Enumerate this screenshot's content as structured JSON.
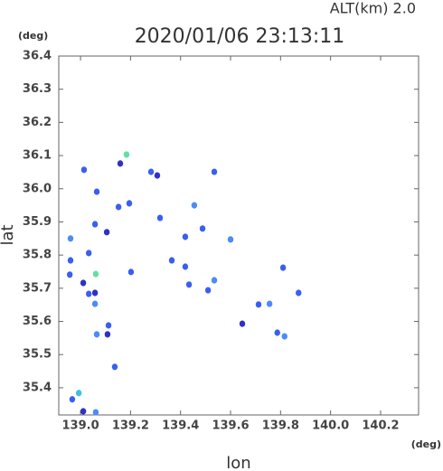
{
  "chart_data": {
    "type": "scatter",
    "title": "2020/01/06 23:13:11",
    "subtitle": "ALT(km)  2.0",
    "y_unit": "(deg)",
    "x_unit": "(deg)",
    "xlabel": "lon",
    "ylabel": "lat",
    "xlim": [
      138.913,
      140.352
    ],
    "ylim": [
      35.318,
      36.4
    ],
    "xticks": [
      {
        "value": 139.0,
        "label": "139.0"
      },
      139.2,
      139.4,
      139.6,
      139.8,
      {
        "value": 140.0,
        "label": "140.0"
      },
      140.2
    ],
    "yticks": [
      35.4,
      35.5,
      35.6,
      35.7,
      35.8,
      35.9,
      {
        "value": 36.0,
        "label": "36.0"
      },
      36.1,
      36.2,
      36.3,
      36.4
    ],
    "grid": false,
    "x": [
      139.014,
      139.065,
      139.159,
      139.184,
      139.282,
      139.307,
      139.195,
      139.152,
      139.318,
      139.058,
      139.105,
      138.96,
      139.033,
      138.96,
      138.957,
      139.061,
      139.011,
      139.033,
      139.058,
      139.058,
      139.112,
      139.065,
      139.108,
      139.137,
      138.967,
      138.993,
      139.011,
      139.061,
      139.202,
      139.365,
      139.419,
      139.434,
      139.51,
      139.535,
      139.647,
      139.712,
      139.787,
      139.816,
      139.872,
      139.81,
      139.756,
      139.535,
      139.419,
      139.455,
      139.488,
      139.6
    ],
    "values": [
      36.057,
      35.991,
      36.076,
      36.103,
      36.051,
      36.04,
      35.956,
      35.945,
      35.912,
      35.893,
      35.869,
      35.85,
      35.806,
      35.784,
      35.741,
      35.743,
      35.716,
      35.683,
      35.653,
      35.686,
      35.588,
      35.561,
      35.561,
      35.463,
      35.365,
      35.384,
      35.329,
      35.326,
      35.749,
      35.784,
      35.765,
      35.711,
      35.694,
      35.724,
      35.593,
      35.651,
      35.566,
      35.555,
      35.686,
      35.762,
      35.653,
      36.051,
      35.855,
      35.95,
      35.88,
      35.847
    ],
    "colors": [
      "#3a5ff0",
      "#3a5ff0",
      "#3030c8",
      "#60e0a0",
      "#3a5ff0",
      "#3030c8",
      "#3a5ff0",
      "#3a5ff0",
      "#3a5ff0",
      "#3a5ff0",
      "#3030c8",
      "#4a8cf8",
      "#3a5ff0",
      "#3a5ff0",
      "#3a5ff0",
      "#60e0a0",
      "#3030c8",
      "#3a5ff0",
      "#4a8cf8",
      "#3030c8",
      "#3a5ff0",
      "#4a8cf8",
      "#3030c8",
      "#3a5ff0",
      "#3a5ff0",
      "#40c0e0",
      "#3030c8",
      "#4a8cf8",
      "#3a5ff0",
      "#3a5ff0",
      "#3a5ff0",
      "#3a5ff0",
      "#3a5ff0",
      "#4a8cf8",
      "#3030c8",
      "#3a5ff0",
      "#3a5ff0",
      "#4a8cf8",
      "#3a5ff0",
      "#3a5ff0",
      "#4a8cf8",
      "#3a5ff0",
      "#3a5ff0",
      "#4a8cf8",
      "#3a5ff0",
      "#4a8cf8"
    ]
  }
}
